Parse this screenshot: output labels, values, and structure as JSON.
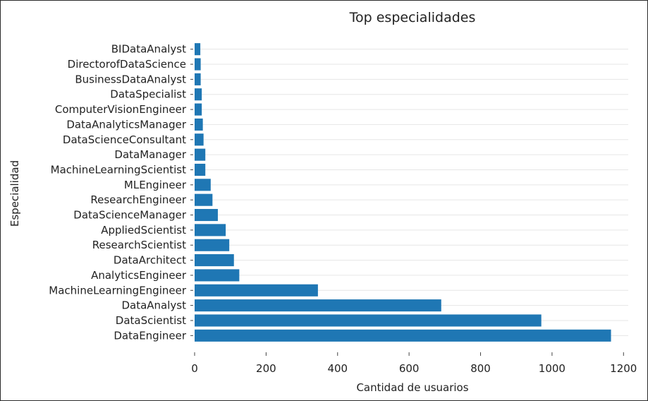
{
  "chart_data": {
    "type": "bar",
    "orientation": "horizontal",
    "title": "Top especialidades",
    "xlabel": "Cantidad de usuarios",
    "ylabel": "Especialidad",
    "xlim": [
      0,
      1230
    ],
    "x_ticks": [
      0,
      200,
      400,
      600,
      800,
      1000,
      1200
    ],
    "grid": true,
    "bar_color": "#1f77b4",
    "categories": [
      "DataEngineer",
      "DataScientist",
      "DataAnalyst",
      "MachineLearningEngineer",
      "AnalyticsEngineer",
      "DataArchitect",
      "ResearchScientist",
      "AppliedScientist",
      "DataScienceManager",
      "ResearchEngineer",
      "MLEngineer",
      "MachineLearningScientist",
      "DataManager",
      "DataScienceConsultant",
      "DataAnalyticsManager",
      "ComputerVisionEngineer",
      "DataSpecialist",
      "BusinessDataAnalyst",
      "DirectorofDataScience",
      "BIDataAnalyst"
    ],
    "values": [
      1165,
      970,
      690,
      345,
      125,
      110,
      97,
      87,
      65,
      50,
      45,
      30,
      30,
      25,
      23,
      20,
      20,
      17,
      17,
      16
    ]
  }
}
